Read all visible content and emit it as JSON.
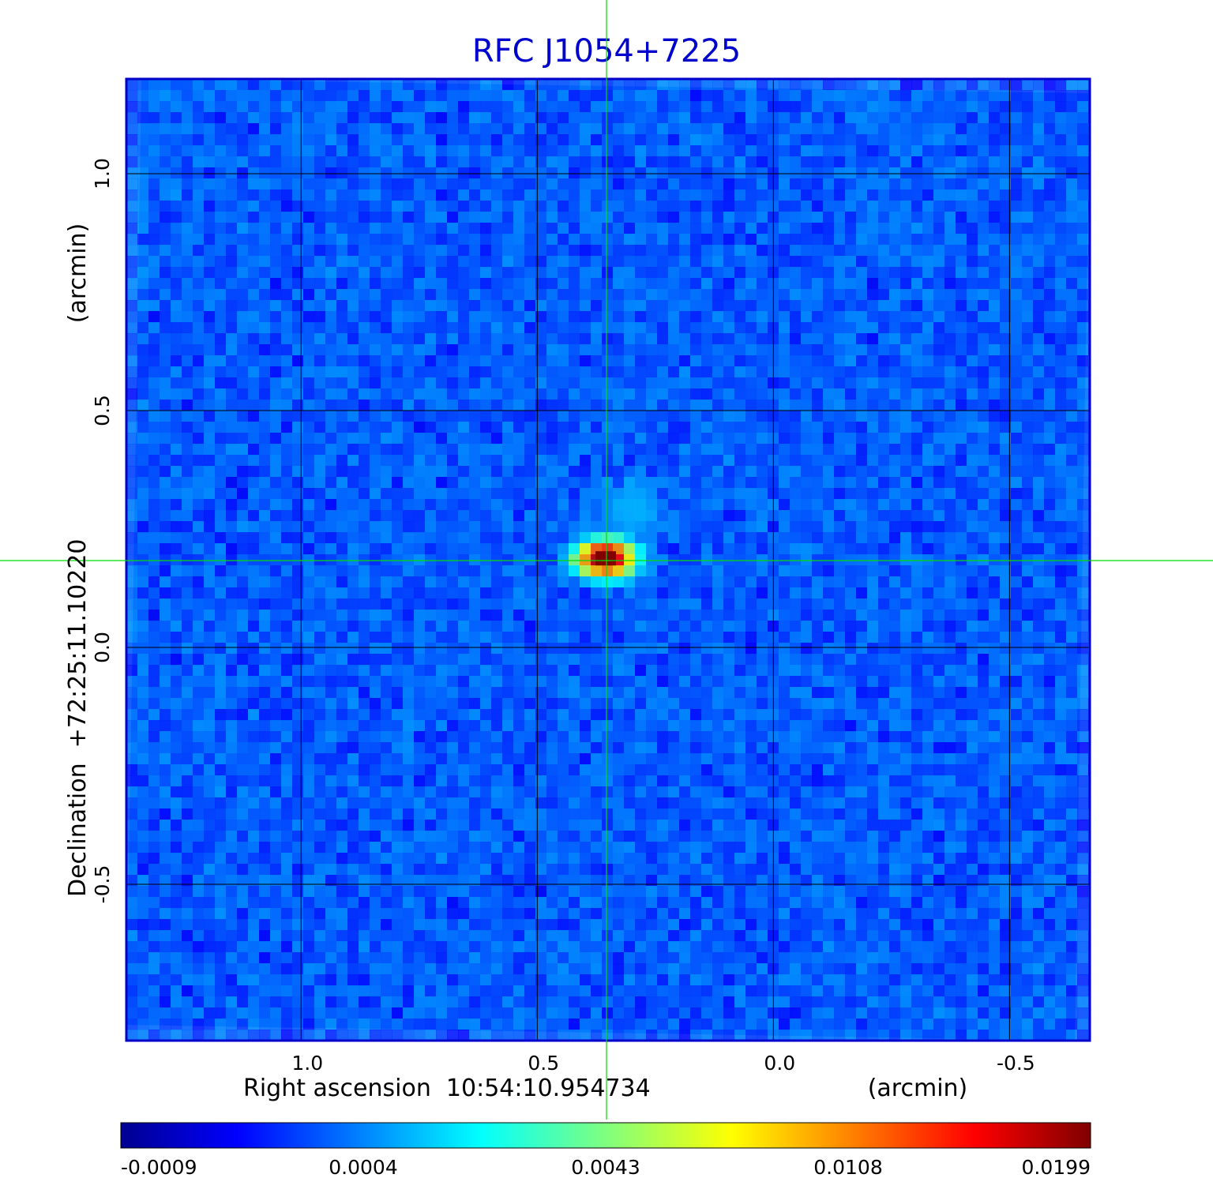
{
  "chart_data": {
    "type": "heatmap",
    "title": "RFC J1054+7225",
    "xlabel": "Right ascension  10:54:10.954734",
    "xlabel_unit": "(arcmin)",
    "ylabel": "Declination  +72:25:11.10220",
    "ylabel_unit": "(arcmin)",
    "x_ticks": [
      "1.0",
      "0.5",
      "0.0",
      "-0.5"
    ],
    "x_tick_values": [
      1.0,
      0.5,
      0.0,
      -0.5
    ],
    "y_ticks": [
      "1.0",
      "0.5",
      "0.0",
      "-0.5"
    ],
    "y_tick_values": [
      1.0,
      0.5,
      0.0,
      -0.5
    ],
    "xlim": [
      1.37,
      -0.67
    ],
    "ylim": [
      -0.83,
      1.2
    ],
    "grid": true,
    "crosshair": {
      "x": 0.355,
      "y": 0.188
    },
    "colormap": "jet",
    "colorbar_labels": [
      "-0.0009",
      "0.0004",
      "0.0043",
      "0.0108",
      "0.0199"
    ],
    "colorbar_values": [
      -0.0009,
      0.0004,
      0.0043,
      0.0108,
      0.0199
    ],
    "peak": {
      "x": 0.355,
      "y": 0.188,
      "value": 0.0199
    },
    "secondary_feature": {
      "x": 0.3,
      "y": 0.3,
      "value": 0.0012
    },
    "background_level": 0.0002
  },
  "colors": {
    "frame": "#0000cc",
    "title": "#0000cc",
    "crosshair": "#00dd00",
    "grid": "#000000",
    "text": "#000000"
  }
}
